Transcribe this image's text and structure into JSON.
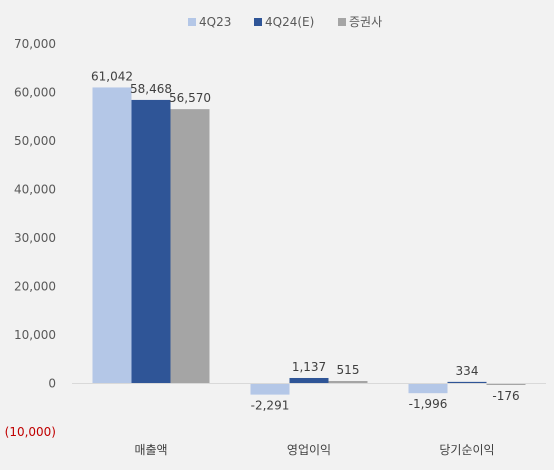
{
  "chart_data": {
    "type": "bar",
    "categories": [
      "매출액",
      "영업이익",
      "당기순이익"
    ],
    "series": [
      {
        "name": "4Q23",
        "values": [
          61042,
          -2291,
          -1996
        ],
        "labels": [
          "61,042",
          "-2,291",
          "-1,996"
        ],
        "color": "#b4c7e7"
      },
      {
        "name": "4Q24(E)",
        "values": [
          58468,
          1137,
          334
        ],
        "labels": [
          "58,468",
          "1,137",
          "334"
        ],
        "color": "#2f5597"
      },
      {
        "name": "증권사",
        "values": [
          56570,
          515,
          -176
        ],
        "labels": [
          "56,570",
          "515",
          "-176"
        ],
        "color": "#a5a5a5"
      }
    ],
    "ylim": [
      -10000,
      70000
    ],
    "yticks": [
      70000,
      60000,
      50000,
      40000,
      30000,
      20000,
      10000,
      0,
      -10000
    ],
    "ytick_labels": [
      "70,000",
      "60,000",
      "50,000",
      "40,000",
      "30,000",
      "20,000",
      "10,000",
      "0",
      "(10,000)"
    ],
    "negative_tick_color": "#c00000",
    "grid": false,
    "legend_position": "top-center"
  }
}
